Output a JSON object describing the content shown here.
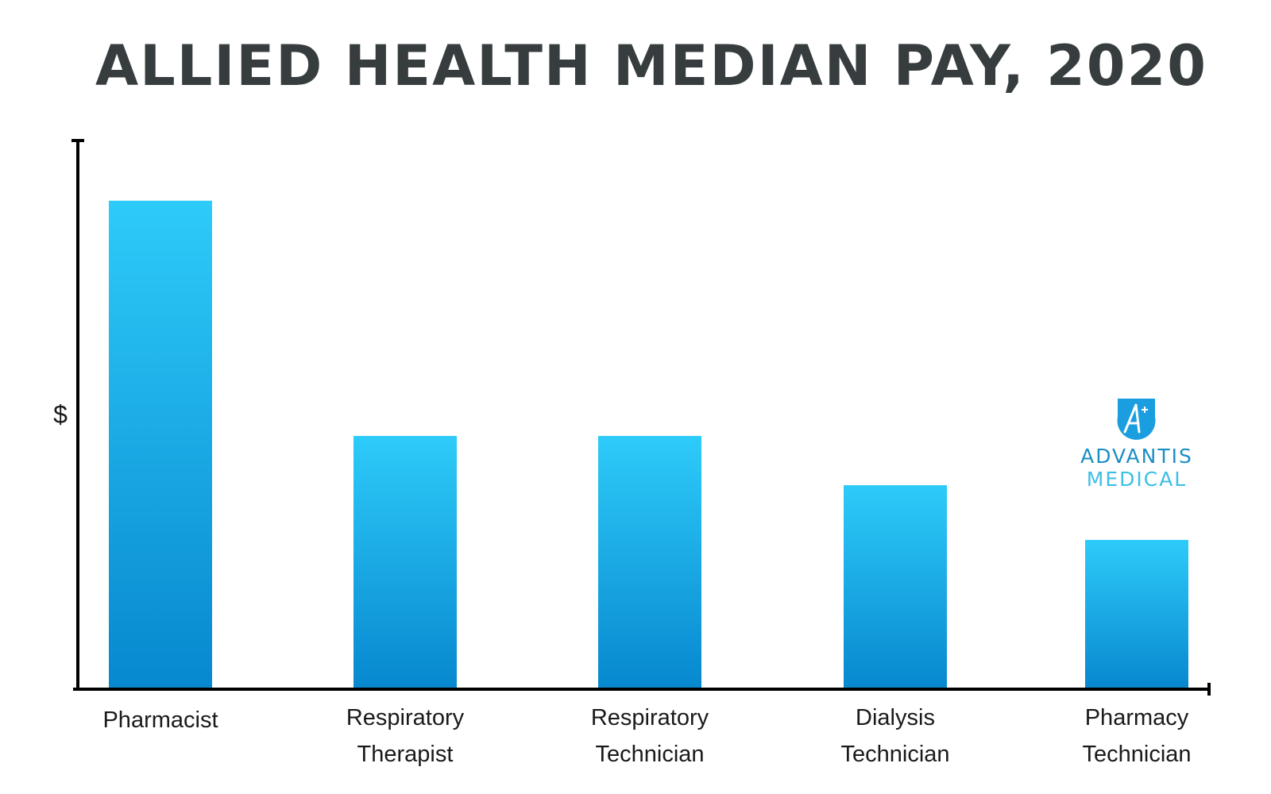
{
  "chart_data": {
    "type": "bar",
    "title": "ALLIED HEALTH MEDIAN PAY, 2020",
    "ylabel": "$",
    "xlabel": "",
    "categories": [
      [
        "Pharmacist"
      ],
      [
        "Respiratory",
        "Therapist"
      ],
      [
        "Respiratory",
        "Technician"
      ],
      [
        "Dialysis",
        "Technician"
      ],
      [
        "Pharmacy",
        "Technician"
      ]
    ],
    "values": [
      89,
      46,
      46,
      37,
      27
    ],
    "ylim": [
      0,
      100
    ],
    "grid": false,
    "y_ticks_shown": false,
    "bar_gradient": [
      "#2ecbf9",
      "#0788cf"
    ]
  },
  "logo": {
    "line1": "ADVANTIS",
    "line2": "MEDICAL",
    "line1_color": "#1a8fc4",
    "line2_color": "#3cbfe6",
    "icon": "a-plus-icon",
    "icon_color": "#1a9ee0"
  }
}
